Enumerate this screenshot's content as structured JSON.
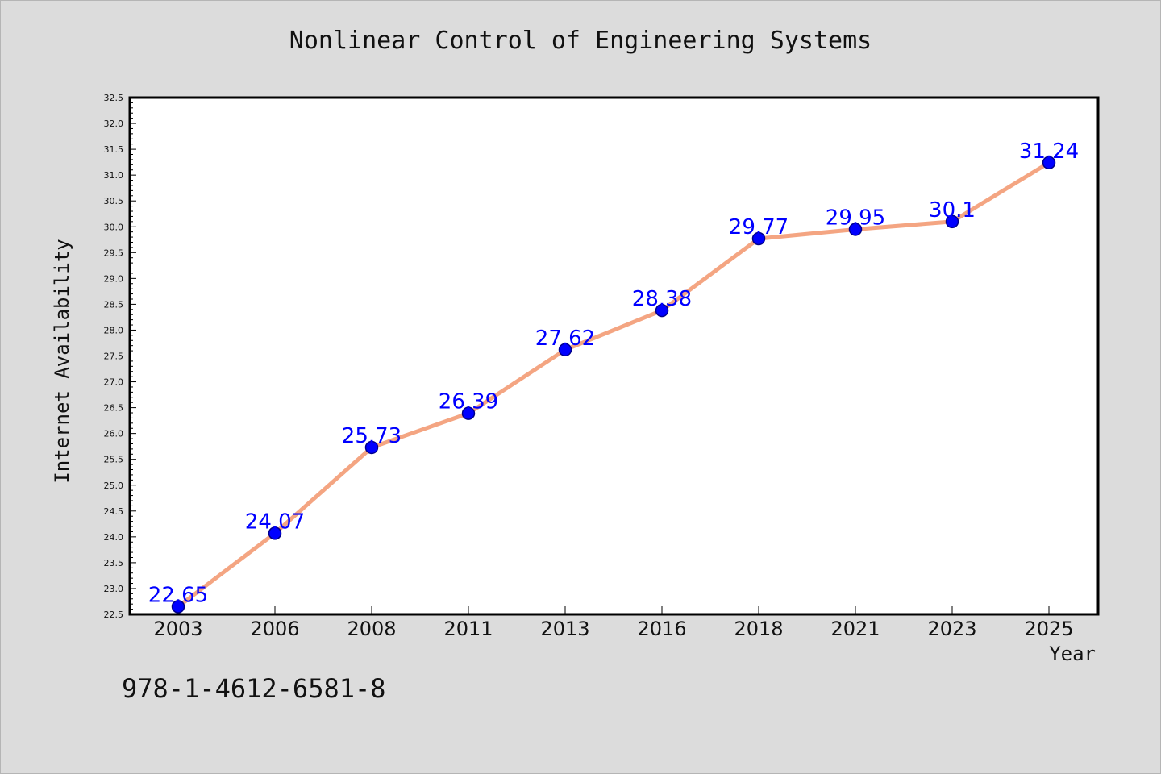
{
  "figure": {
    "title": "Nonlinear Control of Engineering Systems",
    "footer_text": "978-1-4612-6581-8"
  },
  "chart_data": {
    "type": "line",
    "title": "Nonlinear Control of Engineering Systems",
    "xlabel": "Year",
    "ylabel": "Internet Availability",
    "categories": [
      "2003",
      "2006",
      "2008",
      "2011",
      "2013",
      "2016",
      "2018",
      "2021",
      "2023",
      "2025"
    ],
    "series": [
      {
        "values": [
          22.65,
          24.07,
          25.73,
          26.39,
          27.62,
          28.38,
          29.77,
          29.95,
          30.1,
          31.24
        ],
        "data_labels": [
          "22.65",
          "24.07",
          "25.73",
          "26.39",
          "27.62",
          "28.38",
          "29.77",
          "29.95",
          "30.1",
          "31.24"
        ]
      }
    ],
    "ylim": [
      22.5,
      32.5
    ],
    "y_major_step": 0.5,
    "y_ticks": [
      "22.5",
      "23.0",
      "23.5",
      "24.0",
      "24.5",
      "25.0",
      "25.5",
      "26.0",
      "26.5",
      "27.0",
      "27.5",
      "28.0",
      "28.5",
      "29.0",
      "29.5",
      "30.0",
      "30.5",
      "31.0",
      "31.5",
      "32.0",
      "32.5"
    ],
    "grid": false,
    "legend": "none",
    "colors": {
      "line": "#f4a582",
      "marker_fill": "#0000ff",
      "marker_edge": "#00008b",
      "data_label": "#0000ff",
      "background": "#dcdcdc",
      "plot_area": "#ffffff"
    }
  }
}
